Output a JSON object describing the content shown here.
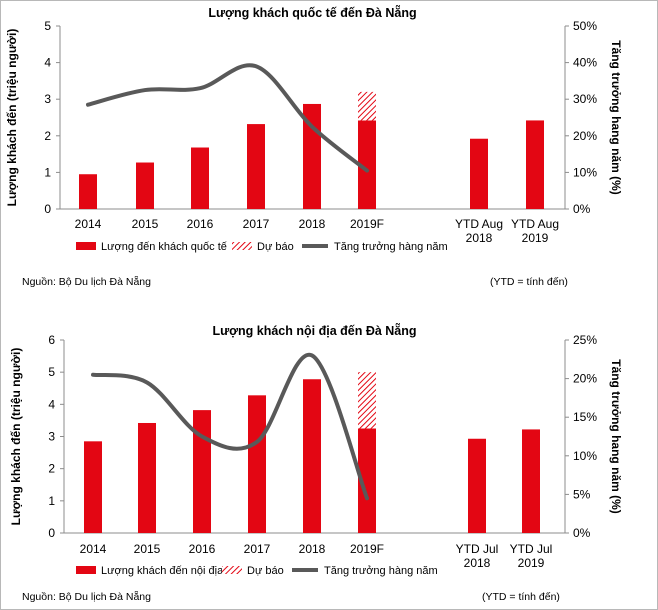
{
  "chart_data": [
    {
      "type": "bar",
      "title": "Lượng khách quốc tế đến Đà Nẵng",
      "ylabel": "Lượng khách đến (triệu người)",
      "y2label": "Tăng trưởng hang năm (%)",
      "ylim": [
        0,
        5
      ],
      "y2lim": [
        0,
        50
      ],
      "yticks": [
        "0",
        "1",
        "2",
        "3",
        "4",
        "5"
      ],
      "y2ticks": [
        "0%",
        "10%",
        "20%",
        "30%",
        "40%",
        "50%"
      ],
      "categories": [
        "2014",
        "2015",
        "2016",
        "2017",
        "2018",
        "2019F",
        "YTD Aug\n2018",
        "YTD Aug\n2019"
      ],
      "series": [
        {
          "name": "Lượng đến khách quốc tế",
          "kind": "bar",
          "color": "#e30613",
          "values": [
            0.95,
            1.27,
            1.68,
            2.32,
            2.87,
            2.42,
            1.92,
            2.42
          ]
        },
        {
          "name": "Dự báo",
          "kind": "bar-hatched",
          "color": "#e30613",
          "values": [
            null,
            null,
            null,
            null,
            null,
            0.78,
            null,
            null
          ]
        },
        {
          "name": "Tăng trưởng hàng năm",
          "kind": "line",
          "axis": "right",
          "color": "#595959",
          "values": [
            28.5,
            32.5,
            33,
            39,
            22.5,
            10.5,
            null,
            null
          ]
        }
      ],
      "legend": "bottom",
      "grid": false
    },
    {
      "type": "bar",
      "title": "Lượng khách nội địa đến Đà Nẵng",
      "ylabel": "Lượng khách đến (triệu người)",
      "y2label": "Tăng trưởng hang năm (%)",
      "ylim": [
        0,
        6
      ],
      "y2lim": [
        0,
        25
      ],
      "yticks": [
        "0",
        "1",
        "2",
        "3",
        "4",
        "5",
        "6"
      ],
      "y2ticks": [
        "0%",
        "5%",
        "10%",
        "15%",
        "20%",
        "25%"
      ],
      "categories": [
        "2014",
        "2015",
        "2016",
        "2017",
        "2018",
        "2019F",
        "YTD Jul\n2018",
        "YTD Jul\n2019"
      ],
      "series": [
        {
          "name": "Lượng khách đến nội địa",
          "kind": "bar",
          "color": "#e30613",
          "values": [
            2.85,
            3.42,
            3.82,
            4.28,
            4.78,
            3.25,
            2.93,
            3.22
          ]
        },
        {
          "name": "Dự báo",
          "kind": "bar-hatched",
          "color": "#e30613",
          "values": [
            null,
            null,
            null,
            null,
            null,
            1.75,
            null,
            null
          ]
        },
        {
          "name": "Tăng trưởng hàng năm",
          "kind": "line",
          "axis": "right",
          "color": "#595959",
          "values": [
            20.5,
            19.5,
            12.5,
            11.8,
            23,
            4.5,
            null,
            null
          ]
        }
      ],
      "legend": "bottom",
      "grid": false
    }
  ],
  "notes": {
    "source_1": "Nguồn: Bộ Du lịch Đà Nẵng",
    "ytd_1": "(YTD = tính đến)",
    "source_2": "Nguồn: Bộ Du lịch Đà Nẵng",
    "ytd_2": "(YTD = tính đến)"
  }
}
